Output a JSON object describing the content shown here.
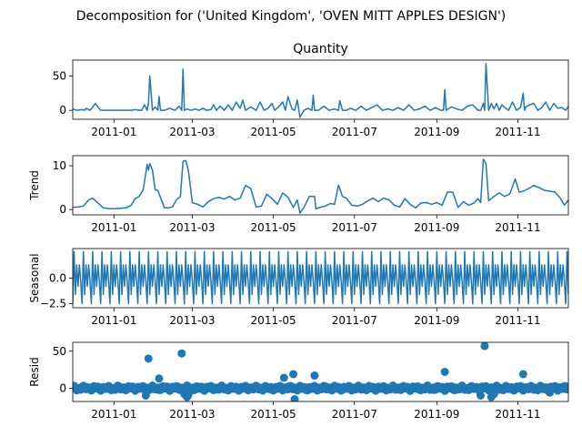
{
  "figure": {
    "suptitle": "Decomposition for ('United Kingdom', 'OVEN MITT APPLES DESIGN')"
  },
  "colors": {
    "line": "#1f77b4",
    "axis": "#000000",
    "background": "#ffffff"
  },
  "chart_data": [
    {
      "type": "line",
      "title": "Quantity",
      "ylabel": "",
      "xrange": [
        "2010-12-01",
        "2011-12-09"
      ],
      "ylim": [
        -13,
        73
      ],
      "yticks": [
        0,
        50
      ],
      "xticks": [
        "2011-01",
        "2011-03",
        "2011-05",
        "2011-07",
        "2011-09",
        "2011-11"
      ],
      "grid": false,
      "series": [
        {
          "x": [
            "2010-12-01",
            "2010-12-04",
            "2010-12-08",
            "2010-12-10",
            "2010-12-11",
            "2010-12-14",
            "2010-12-18",
            "2010-12-22",
            "2010-12-26",
            "2010-12-30",
            "2011-01-03",
            "2011-01-06",
            "2011-01-10",
            "2011-01-14",
            "2011-01-17",
            "2011-01-20",
            "2011-01-22",
            "2011-01-24",
            "2011-01-26",
            "2011-01-27",
            "2011-01-28",
            "2011-01-30",
            "2011-02-01",
            "2011-02-03",
            "2011-02-04",
            "2011-02-05",
            "2011-02-08",
            "2011-02-12",
            "2011-02-16",
            "2011-02-19",
            "2011-02-21",
            "2011-02-22",
            "2011-02-23",
            "2011-02-25",
            "2011-02-28",
            "2011-03-03",
            "2011-03-06",
            "2011-03-09",
            "2011-03-12",
            "2011-03-15",
            "2011-03-17",
            "2011-03-19",
            "2011-03-22",
            "2011-03-25",
            "2011-03-28",
            "2011-03-31",
            "2011-04-03",
            "2011-04-06",
            "2011-04-08",
            "2011-04-10",
            "2011-04-14",
            "2011-04-18",
            "2011-04-21",
            "2011-04-24",
            "2011-04-27",
            "2011-04-30",
            "2011-05-02",
            "2011-05-05",
            "2011-05-08",
            "2011-05-10",
            "2011-05-12",
            "2011-05-15",
            "2011-05-17",
            "2011-05-19",
            "2011-05-21",
            "2011-05-24",
            "2011-05-27",
            "2011-05-30",
            "2011-05-31",
            "2011-06-01",
            "2011-06-04",
            "2011-06-08",
            "2011-06-12",
            "2011-06-16",
            "2011-06-19",
            "2011-06-20",
            "2011-06-22",
            "2011-06-25",
            "2011-06-28",
            "2011-07-02",
            "2011-07-06",
            "2011-07-10",
            "2011-07-14",
            "2011-07-18",
            "2011-07-22",
            "2011-07-26",
            "2011-07-30",
            "2011-08-03",
            "2011-08-07",
            "2011-08-11",
            "2011-08-15",
            "2011-08-19",
            "2011-08-23",
            "2011-08-27",
            "2011-08-31",
            "2011-09-04",
            "2011-09-06",
            "2011-09-07",
            "2011-09-08",
            "2011-09-12",
            "2011-09-16",
            "2011-09-20",
            "2011-09-24",
            "2011-09-28",
            "2011-10-02",
            "2011-10-04",
            "2011-10-06",
            "2011-10-07",
            "2011-10-08",
            "2011-10-10",
            "2011-10-12",
            "2011-10-14",
            "2011-10-16",
            "2011-10-18",
            "2011-10-20",
            "2011-10-22",
            "2011-10-25",
            "2011-10-28",
            "2011-10-31",
            "2011-11-03",
            "2011-11-05",
            "2011-11-06",
            "2011-11-07",
            "2011-11-10",
            "2011-11-13",
            "2011-11-16",
            "2011-11-19",
            "2011-11-22",
            "2011-11-25",
            "2011-11-28",
            "2011-12-01",
            "2011-12-04",
            "2011-12-07",
            "2011-12-09"
          ],
          "y": [
            2,
            0,
            1,
            0,
            3,
            0,
            10,
            0,
            0,
            0,
            0,
            0,
            0,
            0,
            1,
            0,
            0,
            8,
            0,
            10,
            50,
            0,
            5,
            0,
            20,
            0,
            0,
            3,
            0,
            6,
            0,
            60,
            0,
            2,
            0,
            2,
            0,
            3,
            0,
            1,
            8,
            0,
            6,
            0,
            8,
            0,
            12,
            3,
            15,
            0,
            5,
            0,
            12,
            0,
            3,
            10,
            0,
            5,
            12,
            0,
            20,
            2,
            0,
            15,
            -10,
            0,
            3,
            0,
            22,
            0,
            0,
            6,
            0,
            2,
            0,
            14,
            0,
            0,
            3,
            0,
            6,
            0,
            4,
            8,
            0,
            2,
            0,
            4,
            0,
            8,
            0,
            2,
            6,
            0,
            4,
            0,
            0,
            30,
            0,
            5,
            2,
            0,
            6,
            8,
            0,
            0,
            10,
            0,
            68,
            0,
            10,
            2,
            10,
            0,
            8,
            4,
            0,
            12,
            0,
            4,
            25,
            0,
            5,
            8,
            10,
            0,
            4,
            12,
            0,
            10,
            3,
            4,
            0,
            6
          ]
        }
      ]
    },
    {
      "type": "line",
      "title": "",
      "ylabel": "Trend",
      "xrange": [
        "2010-12-01",
        "2011-12-09"
      ],
      "ylim": [
        -1.2,
        12.3
      ],
      "yticks": [
        0,
        10
      ],
      "xticks": [
        "2011-01",
        "2011-03",
        "2011-05",
        "2011-07",
        "2011-09",
        "2011-11"
      ],
      "grid": false,
      "series": [
        {
          "x": [
            "2010-12-01",
            "2010-12-05",
            "2010-12-09",
            "2010-12-13",
            "2010-12-16",
            "2010-12-20",
            "2010-12-24",
            "2010-12-28",
            "2011-01-02",
            "2011-01-06",
            "2011-01-10",
            "2011-01-14",
            "2011-01-17",
            "2011-01-20",
            "2011-01-23",
            "2011-01-26",
            "2011-01-27",
            "2011-01-28",
            "2011-01-30",
            "2011-02-01",
            "2011-02-03",
            "2011-02-08",
            "2011-02-11",
            "2011-02-14",
            "2011-02-17",
            "2011-02-20",
            "2011-02-22",
            "2011-02-24",
            "2011-02-26",
            "2011-03-01",
            "2011-03-05",
            "2011-03-09",
            "2011-03-13",
            "2011-03-17",
            "2011-03-21",
            "2011-03-25",
            "2011-03-29",
            "2011-04-02",
            "2011-04-06",
            "2011-04-10",
            "2011-04-14",
            "2011-04-18",
            "2011-04-22",
            "2011-04-26",
            "2011-04-30",
            "2011-05-04",
            "2011-05-08",
            "2011-05-12",
            "2011-05-16",
            "2011-05-19",
            "2011-05-21",
            "2011-05-24",
            "2011-05-28",
            "2011-06-01",
            "2011-06-02",
            "2011-06-05",
            "2011-06-09",
            "2011-06-13",
            "2011-06-16",
            "2011-06-19",
            "2011-06-22",
            "2011-06-25",
            "2011-06-29",
            "2011-07-03",
            "2011-07-07",
            "2011-07-11",
            "2011-07-15",
            "2011-07-19",
            "2011-07-23",
            "2011-07-27",
            "2011-07-31",
            "2011-08-04",
            "2011-08-08",
            "2011-08-12",
            "2011-08-16",
            "2011-08-20",
            "2011-08-24",
            "2011-08-28",
            "2011-09-01",
            "2011-09-05",
            "2011-09-09",
            "2011-09-13",
            "2011-09-17",
            "2011-09-21",
            "2011-09-25",
            "2011-09-29",
            "2011-10-02",
            "2011-10-04",
            "2011-10-06",
            "2011-10-08",
            "2011-10-10",
            "2011-10-14",
            "2011-10-18",
            "2011-10-22",
            "2011-10-26",
            "2011-10-30",
            "2011-11-02",
            "2011-11-05",
            "2011-11-09",
            "2011-11-13",
            "2011-11-17",
            "2011-11-21",
            "2011-11-25",
            "2011-11-29",
            "2011-12-03",
            "2011-12-06",
            "2011-12-09"
          ],
          "y": [
            0.5,
            0.6,
            0.8,
            2.2,
            2.6,
            1.5,
            0.4,
            0.2,
            0.2,
            0.3,
            0.4,
            1.0,
            2.5,
            3.0,
            4.5,
            10.3,
            9.0,
            10.5,
            9.0,
            4.5,
            4.4,
            0.4,
            0.4,
            0.6,
            2.2,
            3.0,
            11.0,
            11.2,
            9.0,
            1.6,
            1.2,
            0.6,
            1.8,
            2.5,
            2.8,
            2.4,
            3.0,
            2.2,
            2.6,
            5.5,
            4.8,
            0.6,
            0.8,
            3.5,
            2.5,
            1.2,
            3.8,
            2.8,
            0.5,
            2.2,
            -0.8,
            0.5,
            3.0,
            3.0,
            0.2,
            0.5,
            0.8,
            1.4,
            1.2,
            5.6,
            3.0,
            2.6,
            1.0,
            0.8,
            1.2,
            2.0,
            2.6,
            1.8,
            2.6,
            2.2,
            1.0,
            0.6,
            2.5,
            1.2,
            0.4,
            1.5,
            1.6,
            1.2,
            1.6,
            1.0,
            4.0,
            4.0,
            0.5,
            1.8,
            1.0,
            1.5,
            2.5,
            1.6,
            11.5,
            10.5,
            2.0,
            3.0,
            3.8,
            3.0,
            3.6,
            7.0,
            4.0,
            4.2,
            4.8,
            5.5,
            5.0,
            4.4,
            4.2,
            4.0,
            2.6,
            1.0,
            2.2
          ]
        }
      ]
    },
    {
      "type": "line",
      "title": "",
      "ylabel": "Seasonal",
      "xrange": [
        "2010-12-01",
        "2011-12-09"
      ],
      "ylim": [
        -2.9,
        2.9
      ],
      "yticks": [
        -2.5,
        0.0
      ],
      "xticks": [
        "2011-01",
        "2011-03",
        "2011-05",
        "2011-07",
        "2011-09",
        "2011-11"
      ],
      "grid": false,
      "period_days": 7,
      "pattern": [
        -2.5,
        2.6,
        -1.6,
        1.3,
        -0.8,
        1.3,
        -0.3
      ],
      "start": "2010-12-01",
      "end": "2011-12-09"
    },
    {
      "type": "scatter",
      "title": "",
      "ylabel": "Resid",
      "xrange": [
        "2010-12-01",
        "2011-12-09"
      ],
      "ylim": [
        -18,
        62
      ],
      "yticks": [
        0,
        50
      ],
      "xticks": [
        "2011-01",
        "2011-03",
        "2011-05",
        "2011-07",
        "2011-09",
        "2011-11"
      ],
      "grid": false,
      "series": [
        {
          "x": [
            "2011-01-27",
            "2011-02-04",
            "2011-02-21",
            "2011-02-25",
            "2011-05-09",
            "2011-05-16",
            "2011-05-17",
            "2011-06-01",
            "2011-09-07",
            "2011-10-07",
            "2011-10-12",
            "2011-11-05",
            "2011-01-25",
            "2011-02-23",
            "2011-02-26",
            "2011-10-04",
            "2011-10-14",
            "2011-11-25"
          ],
          "y": [
            40,
            13,
            47,
            -12,
            14,
            19,
            -15,
            17,
            22,
            57,
            -12,
            19,
            -10,
            -8,
            -9,
            -10,
            -8,
            -6
          ]
        }
      ]
    }
  ]
}
